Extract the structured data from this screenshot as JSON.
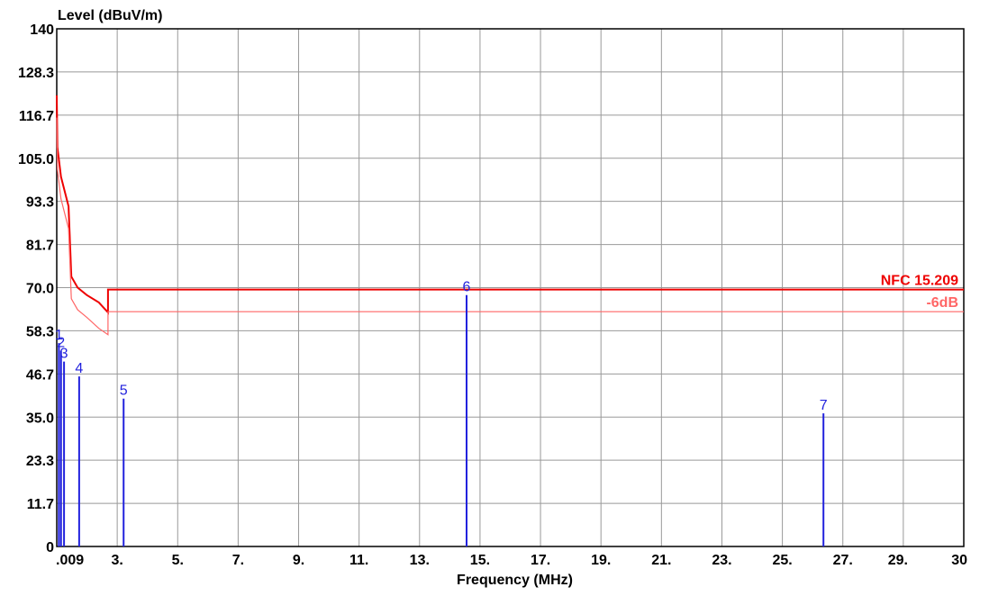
{
  "chart_data": {
    "type": "line",
    "ylabel": "Level (dBuV/m)",
    "xlabel": "Frequency (MHz)",
    "ylim": [
      0,
      140
    ],
    "xlim": [
      0.009,
      30
    ],
    "y_ticks": [
      "140",
      "128.3",
      "116.7",
      "105.0",
      "93.3",
      "81.7",
      "70.0",
      "58.3",
      "46.7",
      "35.0",
      "23.3",
      "11.7",
      "0"
    ],
    "x_ticks": [
      ".009",
      "3.",
      "5.",
      "7.",
      "9.",
      "11.",
      "13.",
      "15.",
      "17.",
      "19.",
      "21.",
      "23.",
      "25.",
      "27.",
      "29.",
      "30"
    ],
    "grid": true,
    "colors": {
      "limit": "#ee0000",
      "margin": "#ff6666",
      "peaks": "#2222dd",
      "grid": "#999999"
    },
    "series": [
      {
        "name": "NFC 15.209",
        "label": "NFC  15.209",
        "color": "#ee0000",
        "points": [
          [
            0.009,
            122
          ],
          [
            0.03,
            108
          ],
          [
            0.15,
            100
          ],
          [
            0.4,
            92
          ],
          [
            0.49,
            73
          ],
          [
            0.7,
            70
          ],
          [
            1.0,
            68
          ],
          [
            1.4,
            66
          ],
          [
            1.705,
            63.3
          ],
          [
            1.705,
            69.5
          ],
          [
            30,
            69.5
          ]
        ]
      },
      {
        "name": "-6dB",
        "label": "-6dB",
        "color": "#ff6666",
        "points": [
          [
            0.009,
            116
          ],
          [
            0.03,
            102
          ],
          [
            0.15,
            94
          ],
          [
            0.4,
            86
          ],
          [
            0.49,
            67
          ],
          [
            0.7,
            64
          ],
          [
            1.0,
            62
          ],
          [
            1.4,
            59
          ],
          [
            1.705,
            57.3
          ],
          [
            1.705,
            63.5
          ],
          [
            30,
            63.5
          ]
        ]
      }
    ],
    "peaks": [
      {
        "label": "1",
        "x": 0.08,
        "y": 55
      },
      {
        "label": "2",
        "x": 0.15,
        "y": 53
      },
      {
        "label": "3",
        "x": 0.25,
        "y": 50
      },
      {
        "label": "4",
        "x": 0.75,
        "y": 46
      },
      {
        "label": "5",
        "x": 2.22,
        "y": 40
      },
      {
        "label": "6",
        "x": 13.56,
        "y": 68
      },
      {
        "label": "7",
        "x": 25.36,
        "y": 36
      }
    ]
  }
}
